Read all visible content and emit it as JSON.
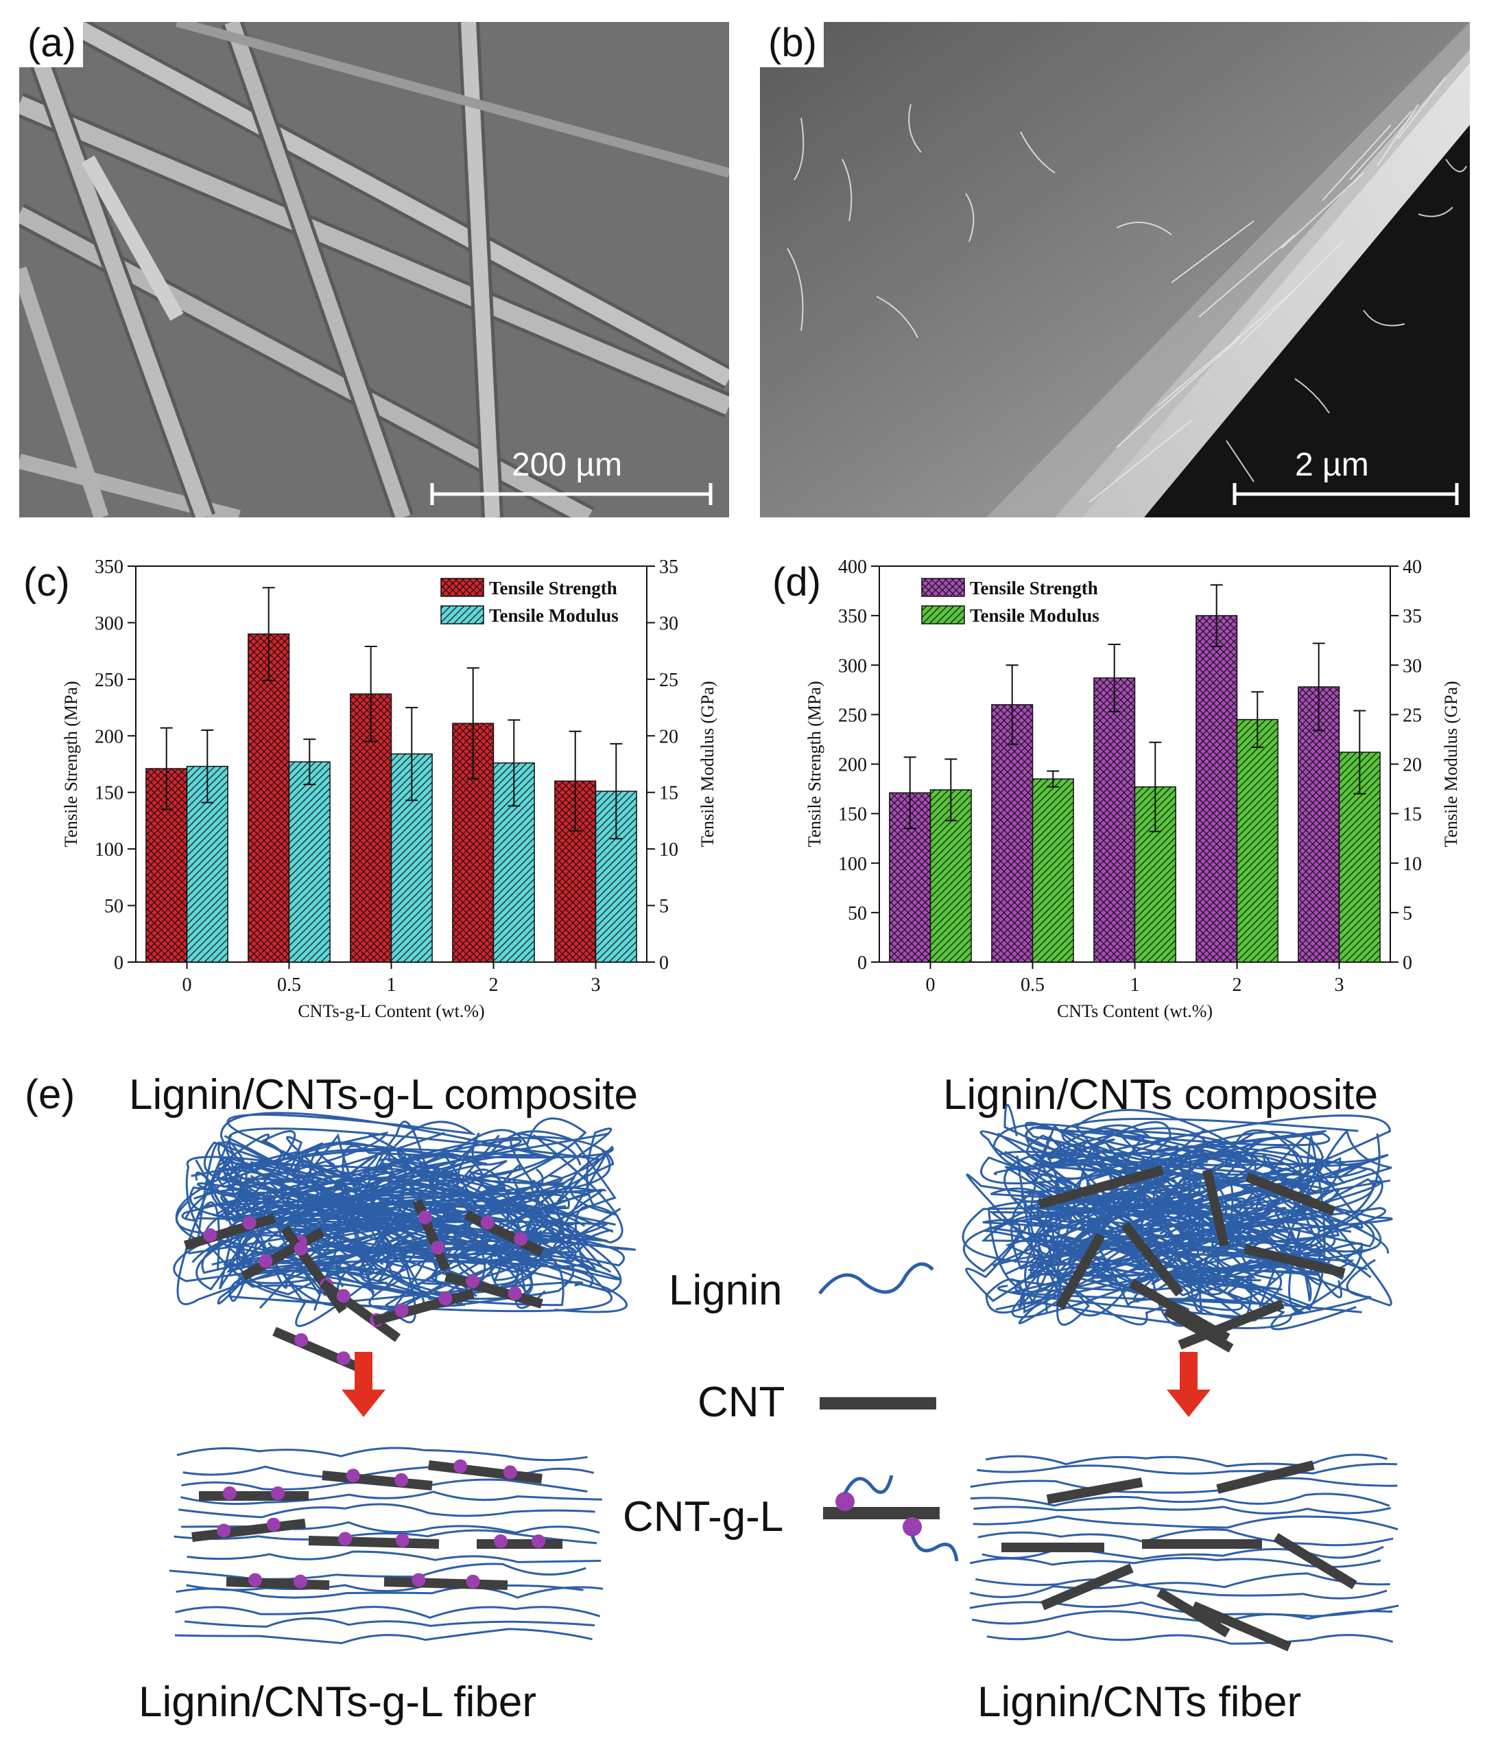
{
  "panels": {
    "a": {
      "label": "(a)",
      "scale": "200 µm"
    },
    "b": {
      "label": "(b)",
      "scale": "2 µm"
    },
    "c": {
      "label": "(c)"
    },
    "d": {
      "label": "(d)"
    },
    "e": {
      "label": "(e)"
    }
  },
  "colors": {
    "c_strength": "#d4232b",
    "c_modulus": "#5fd6d8",
    "d_strength": "#a84bb7",
    "d_modulus": "#58c43a",
    "lignin": "#2d5fa8",
    "cnt": "#3f3f3f",
    "graft": "#9b3fb0",
    "arrow": "#e1301f"
  },
  "chart_data": [
    {
      "id": "c",
      "type": "bar",
      "categories": [
        "0",
        "0.5",
        "1",
        "2",
        "3"
      ],
      "xlabel": "CNTs-g-L Content (wt.%)",
      "ylabel": "Tensile Strength (MPa)",
      "y2label": "Tensile Modulus (GPa)",
      "ylim": [
        0,
        350
      ],
      "y2lim": [
        0,
        35
      ],
      "yticks": [
        "0",
        "50",
        "100",
        "150",
        "200",
        "250",
        "300",
        "350"
      ],
      "y2ticks": [
        "0",
        "5",
        "10",
        "15",
        "20",
        "25",
        "30",
        "35"
      ],
      "legend_position": "top-right",
      "series": [
        {
          "name": "Tensile Strength",
          "axis": "left",
          "values": [
            171,
            290,
            237,
            211,
            160
          ],
          "errors": [
            36,
            41,
            42,
            49,
            44
          ]
        },
        {
          "name": "Tensile Modulus",
          "axis": "right",
          "values": [
            17.3,
            17.7,
            18.4,
            17.6,
            15.1
          ],
          "errors": [
            3.2,
            2.0,
            4.1,
            3.8,
            4.2
          ]
        }
      ]
    },
    {
      "id": "d",
      "type": "bar",
      "categories": [
        "0",
        "0.5",
        "1",
        "2",
        "3"
      ],
      "xlabel": "CNTs Content (wt.%)",
      "ylabel": "Tensile Strength (MPa)",
      "y2label": "Tensile Modulus (GPa)",
      "ylim": [
        0,
        400
      ],
      "y2lim": [
        0,
        40
      ],
      "yticks": [
        "0",
        "50",
        "100",
        "150",
        "200",
        "250",
        "300",
        "350",
        "400"
      ],
      "y2ticks": [
        "0",
        "5",
        "10",
        "15",
        "20",
        "25",
        "30",
        "35",
        "40"
      ],
      "legend_position": "top-left",
      "series": [
        {
          "name": "Tensile Strength",
          "axis": "left",
          "values": [
            171,
            260,
            287,
            350,
            278
          ],
          "errors": [
            36,
            40,
            34,
            31,
            44
          ]
        },
        {
          "name": "Tensile Modulus",
          "axis": "right",
          "values": [
            17.4,
            18.5,
            17.7,
            24.5,
            21.2
          ],
          "errors": [
            3.1,
            0.8,
            4.5,
            2.8,
            4.2
          ]
        }
      ]
    }
  ],
  "schematic": {
    "left_title": "Lignin/CNTs-g-L composite",
    "right_title": "Lignin/CNTs composite",
    "left_fiber": "Lignin/CNTs-g-L fiber",
    "right_fiber": "Lignin/CNTs fiber",
    "legend_lignin": "Lignin",
    "legend_cnt": "CNT",
    "legend_cntgl": "CNT-g-L"
  }
}
